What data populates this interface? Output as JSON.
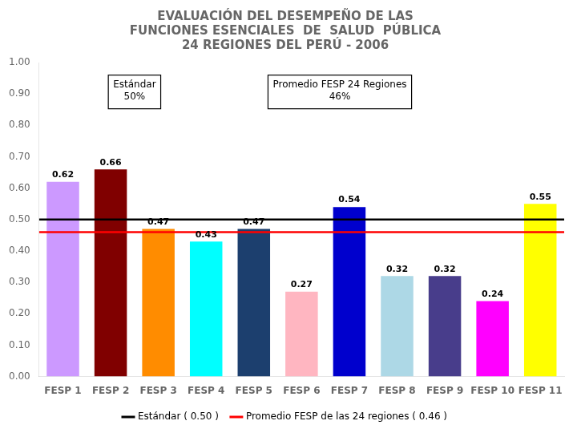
{
  "chart_data": {
    "type": "bar",
    "title": "EVALUACIÓN DEL DESEMPEÑO DE LAS\nFUNCIONES ESENCIALES  DE  SALUD  PÚBLICA\n24 REGIONES DEL PERÚ - 2006",
    "categories": [
      "FESP 1",
      "FESP 2",
      "FESP 3",
      "FESP 4",
      "FESP 5",
      "FESP 6",
      "FESP 7",
      "FESP 8",
      "FESP 9",
      "FESP 10",
      "FESP 11"
    ],
    "values": [
      0.62,
      0.66,
      0.47,
      0.43,
      0.47,
      0.27,
      0.54,
      0.32,
      0.32,
      0.24,
      0.55
    ],
    "colors": [
      "#CC99FF",
      "#800000",
      "#FF8C00",
      "#00FFFF",
      "#1C3F6E",
      "#FFB6C1",
      "#0000CD",
      "#ADD8E6",
      "#483D8B",
      "#FF00FF",
      "#FFFF00"
    ],
    "ylim": [
      0.0,
      1.0
    ],
    "yticks": [
      {
        "value": 0.0,
        "label": "0.00"
      },
      {
        "value": 0.1,
        "label": "0.10"
      },
      {
        "value": 0.2,
        "label": "0.20"
      },
      {
        "value": 0.3,
        "label": "0.30"
      },
      {
        "value": 0.4,
        "label": "0.40"
      },
      {
        "value": 0.5,
        "label": "0.50"
      },
      {
        "value": 0.6,
        "label": "0.60"
      },
      {
        "value": 0.7,
        "label": "0.70"
      },
      {
        "value": 0.8,
        "label": "0.80"
      },
      {
        "value": 0.9,
        "label": "0.90"
      },
      {
        "value": 1.0,
        "label": "1.00"
      }
    ],
    "data_labels": true,
    "grid": false,
    "legend": "bottom",
    "reference_lines": [
      {
        "name": "Estándar ( 0.50 )",
        "value": 0.5,
        "color": "#000000",
        "annotation": "Estándar\n50%"
      },
      {
        "name": "Promedio FESP de las 24 regiones ( 0.46 )",
        "value": 0.46,
        "color": "#FF0000",
        "annotation": "Promedio FESP 24 Regiones\n46%"
      }
    ]
  }
}
